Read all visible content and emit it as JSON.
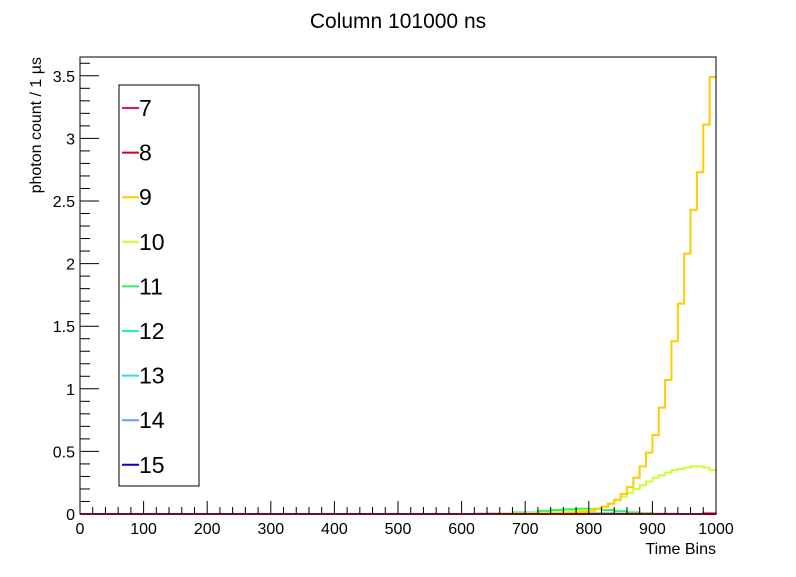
{
  "chart_data": {
    "type": "line",
    "title": "Column 101000 ns",
    "xlabel": "Time Bins",
    "ylabel": "photon count / 1 µs",
    "xlim": [
      0,
      1000
    ],
    "ylim": [
      0,
      3.65
    ],
    "x_ticks": [
      "0",
      "100",
      "200",
      "300",
      "400",
      "500",
      "600",
      "700",
      "800",
      "900",
      "1000"
    ],
    "y_ticks": [
      "0",
      "0.5",
      "1",
      "1.5",
      "2",
      "2.5",
      "3",
      "3.5"
    ],
    "grid": false,
    "legend_position": "left",
    "series": [
      {
        "name": "7",
        "color": "#e3174d",
        "x": [
          0,
          960,
          980,
          1000
        ],
        "y": [
          0,
          0,
          0.005,
          0.01
        ]
      },
      {
        "name": "8",
        "color": "#d40024",
        "x": [
          0,
          1000
        ],
        "y": [
          0,
          0
        ]
      },
      {
        "name": "9",
        "color": "#ffcc00",
        "x": [
          0,
          690,
          700,
          710,
          720,
          730,
          740,
          750,
          760,
          770,
          780,
          790,
          800,
          810,
          820,
          830,
          840,
          850,
          860,
          870,
          880,
          890,
          900,
          910,
          920,
          930,
          940,
          950,
          960,
          970,
          980,
          990,
          1000
        ],
        "y": [
          0,
          0,
          0.0005,
          0.001,
          0.001,
          0.002,
          0.003,
          0.004,
          0.006,
          0.008,
          0.012,
          0.018,
          0.027,
          0.04,
          0.058,
          0.082,
          0.115,
          0.16,
          0.215,
          0.29,
          0.38,
          0.49,
          0.63,
          0.85,
          1.07,
          1.38,
          1.68,
          2.08,
          2.43,
          2.73,
          3.11,
          3.49,
          3.49
        ]
      },
      {
        "name": "10",
        "color": "#ccff33",
        "x": [
          0,
          640,
          660,
          680,
          700,
          720,
          740,
          760,
          780,
          790,
          800,
          810,
          820,
          830,
          840,
          850,
          860,
          870,
          880,
          890,
          900,
          910,
          920,
          930,
          940,
          950,
          960,
          970,
          980,
          990,
          1000
        ],
        "y": [
          0,
          0,
          0.002,
          0.004,
          0.006,
          0.01,
          0.014,
          0.02,
          0.026,
          0.03,
          0.035,
          0.045,
          0.06,
          0.085,
          0.11,
          0.14,
          0.17,
          0.2,
          0.23,
          0.26,
          0.29,
          0.31,
          0.33,
          0.35,
          0.36,
          0.37,
          0.38,
          0.38,
          0.37,
          0.35,
          0.34
        ]
      },
      {
        "name": "11",
        "color": "#33ee66",
        "x": [
          0,
          600,
          640,
          680,
          720,
          740,
          760,
          780,
          800,
          820,
          840,
          860,
          880,
          900,
          940,
          1000
        ],
        "y": [
          0,
          0,
          0.004,
          0.012,
          0.024,
          0.032,
          0.038,
          0.042,
          0.04,
          0.032,
          0.022,
          0.013,
          0.006,
          0.002,
          0,
          0
        ]
      },
      {
        "name": "12",
        "color": "#2ee8c8",
        "x": [
          0,
          560,
          620,
          680,
          720,
          760,
          800,
          840,
          880,
          1000
        ],
        "y": [
          0,
          0,
          0.003,
          0.008,
          0.011,
          0.01,
          0.006,
          0.002,
          0,
          0
        ]
      },
      {
        "name": "13",
        "color": "#33dddd",
        "x": [
          0,
          1000
        ],
        "y": [
          0,
          0
        ]
      },
      {
        "name": "14",
        "color": "#6699ff",
        "x": [
          0,
          1000
        ],
        "y": [
          0,
          0
        ]
      },
      {
        "name": "15",
        "color": "#0000cc",
        "x": [
          0,
          1000
        ],
        "y": [
          0,
          0
        ]
      }
    ]
  }
}
